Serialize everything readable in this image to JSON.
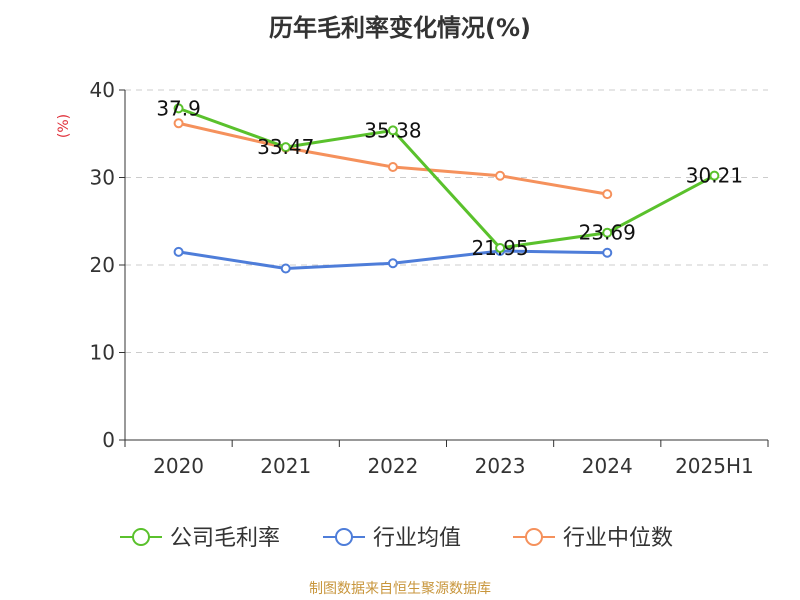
{
  "chart_data": {
    "type": "line",
    "title": "历年毛利率变化情况(%)",
    "ylabel": "(%)",
    "xlabel": "",
    "categories": [
      "2020",
      "2021",
      "2022",
      "2023",
      "2024",
      "2025H1"
    ],
    "ylim": [
      0,
      40
    ],
    "yticks": [
      0,
      10,
      20,
      30,
      40
    ],
    "grid": true,
    "legend_position": "bottom",
    "series": [
      {
        "name": "公司毛利率",
        "color": "#5ac12c",
        "values": [
          37.9,
          33.47,
          35.38,
          21.95,
          23.69,
          30.21
        ],
        "labels": [
          "37.9",
          "33.47",
          "35.38",
          "21.95",
          "23.69",
          "30.21"
        ]
      },
      {
        "name": "行业均值",
        "color": "#4e7dd9",
        "values": [
          21.5,
          19.6,
          20.2,
          21.6,
          21.4,
          null
        ]
      },
      {
        "name": "行业中位数",
        "color": "#f5915c",
        "values": [
          36.2,
          33.4,
          31.2,
          30.2,
          28.1,
          null
        ]
      }
    ]
  },
  "source_text": "制图数据来自恒生聚源数据库"
}
